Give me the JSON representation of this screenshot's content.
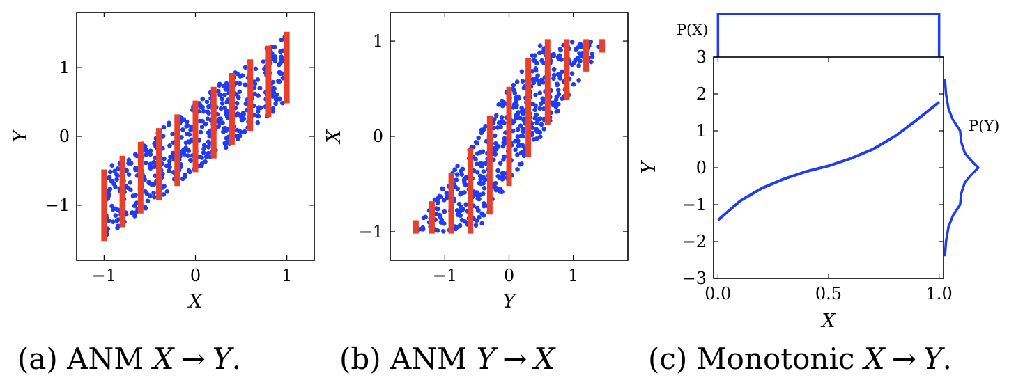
{
  "captions": [
    {
      "prefix": "(a) ANM ",
      "lhs": "X",
      "arrow": "→",
      "rhs": "Y",
      "suffix": "."
    },
    {
      "prefix": "(b) ANM ",
      "lhs": "Y",
      "arrow": "→",
      "rhs": "X",
      "suffix": ""
    },
    {
      "prefix": "(c) Monotonic ",
      "lhs": "X",
      "arrow": "→",
      "rhs": "Y",
      "suffix": "."
    }
  ],
  "colors": {
    "points": "#1f3cf0",
    "bars": "#e8402a",
    "curve": "#1f3cf0"
  },
  "chart_data": [
    {
      "type": "scatter",
      "xlabel": "X",
      "ylabel": "Y",
      "xlim": [
        -1.3,
        1.3
      ],
      "ylim": [
        -1.8,
        1.8
      ],
      "xticks": [
        -1,
        0,
        1
      ],
      "xticklabels": [
        "−1",
        "0",
        "1"
      ],
      "yticks": [
        -1,
        0,
        1
      ],
      "yticklabels": [
        "−1",
        "0",
        "1"
      ],
      "scatter_x_range": [
        -1,
        1
      ],
      "scatter_relation": "y ≈ x + uniform noise in [-0.5, 0.5]",
      "error_bars": [
        {
          "x": -1.0,
          "low": -1.52,
          "high": -0.48
        },
        {
          "x": -0.8,
          "low": -1.32,
          "high": -0.28
        },
        {
          "x": -0.6,
          "low": -1.12,
          "high": -0.08
        },
        {
          "x": -0.4,
          "low": -0.92,
          "high": 0.12
        },
        {
          "x": -0.2,
          "low": -0.72,
          "high": 0.32
        },
        {
          "x": 0.0,
          "low": -0.52,
          "high": 0.52
        },
        {
          "x": 0.2,
          "low": -0.32,
          "high": 0.72
        },
        {
          "x": 0.4,
          "low": -0.12,
          "high": 0.92
        },
        {
          "x": 0.6,
          "low": 0.08,
          "high": 1.12
        },
        {
          "x": 0.8,
          "low": 0.28,
          "high": 1.32
        },
        {
          "x": 1.0,
          "low": 0.48,
          "high": 1.52
        }
      ]
    },
    {
      "type": "scatter",
      "xlabel": "Y",
      "ylabel": "X",
      "xlim": [
        -1.85,
        1.85
      ],
      "ylim": [
        -1.3,
        1.3
      ],
      "xticks": [
        -1,
        0,
        1
      ],
      "xticklabels": [
        "−1",
        "0",
        "1"
      ],
      "yticks": [
        -1,
        0,
        1
      ],
      "yticklabels": [
        "−1",
        "0",
        "1"
      ],
      "scatter_relation": "transposed data of panel (a)",
      "error_bars": [
        {
          "x": -1.45,
          "low": -1.02,
          "high": -0.88
        },
        {
          "x": -1.2,
          "low": -1.02,
          "high": -0.68
        },
        {
          "x": -0.9,
          "low": -1.02,
          "high": -0.38
        },
        {
          "x": -0.6,
          "low": -1.02,
          "high": -0.12
        },
        {
          "x": -0.3,
          "low": -0.82,
          "high": 0.22
        },
        {
          "x": 0.0,
          "low": -0.52,
          "high": 0.52
        },
        {
          "x": 0.3,
          "low": -0.22,
          "high": 0.82
        },
        {
          "x": 0.6,
          "low": 0.12,
          "high": 1.02
        },
        {
          "x": 0.9,
          "low": 0.38,
          "high": 1.02
        },
        {
          "x": 1.2,
          "low": 0.68,
          "high": 1.02
        },
        {
          "x": 1.45,
          "low": 0.88,
          "high": 1.02
        }
      ]
    },
    {
      "type": "line",
      "xlabel": "X",
      "ylabel": "Y",
      "xlim": [
        -0.02,
        1.02
      ],
      "ylim": [
        -3,
        3
      ],
      "xticks": [
        0,
        0.5,
        1
      ],
      "xticklabels": [
        "0.0",
        "0.5",
        "1.0"
      ],
      "yticks": [
        -3,
        -2,
        -1,
        0,
        1,
        2,
        3
      ],
      "yticklabels": [
        "−3",
        "−2",
        "−1",
        "0",
        "1",
        "2",
        "3"
      ],
      "curve": {
        "x": [
          0.0,
          0.1,
          0.2,
          0.3,
          0.4,
          0.5,
          0.6,
          0.7,
          0.8,
          0.9,
          1.0
        ],
        "y": [
          -1.42,
          -0.9,
          -0.55,
          -0.3,
          -0.1,
          0.05,
          0.25,
          0.5,
          0.85,
          1.3,
          1.78
        ]
      },
      "marginal_x": {
        "label": "P(X)",
        "shape": "uniform on [0, 1]"
      },
      "marginal_y": {
        "label": "P(Y)",
        "y": [
          -2.4,
          -2.0,
          -1.6,
          -1.3,
          -1.0,
          -0.7,
          -0.4,
          -0.2,
          0.0,
          0.2,
          0.4,
          0.7,
          1.0,
          1.3,
          1.6,
          2.0,
          2.4
        ],
        "density": [
          0.0,
          0.03,
          0.1,
          0.22,
          0.42,
          0.45,
          0.55,
          0.72,
          0.92,
          0.72,
          0.55,
          0.45,
          0.42,
          0.22,
          0.1,
          0.03,
          0.0
        ]
      }
    }
  ]
}
